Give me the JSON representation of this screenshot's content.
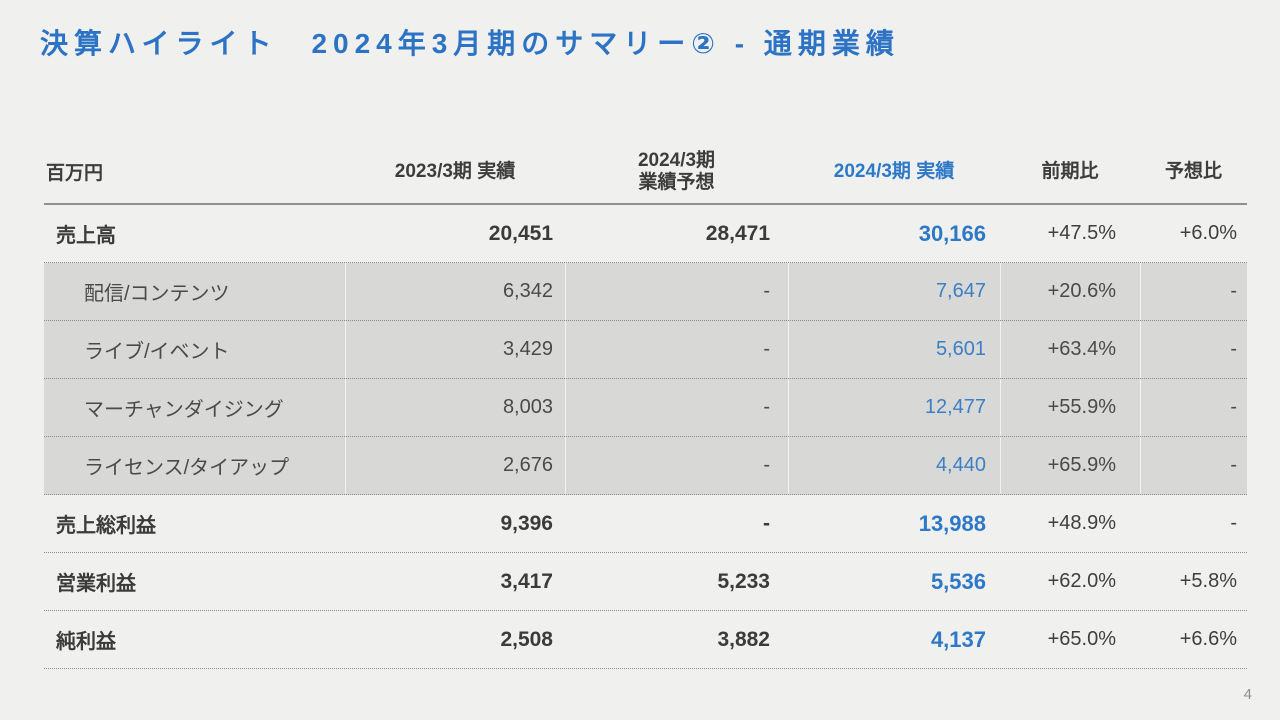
{
  "page": {
    "title": "決算ハイライト　2024年3月期のサマリー② - 通期業績",
    "page_number": "4"
  },
  "colors": {
    "background": "#f0f0ee",
    "accent_blue": "#2e78c8",
    "sub_row_gray": "#d8d8d6",
    "text_dark": "#3d3d3d",
    "line_gray": "#8b8b8b"
  },
  "table": {
    "unit_label": "百万円",
    "headers": {
      "fy2023": "2023/3期 実績",
      "forecast_line1": "2024/3期",
      "forecast_line2": "業績予想",
      "fy2024": "2024/3期 実績",
      "yoy": "前期比",
      "vs_forecast": "予想比"
    },
    "rows": [
      {
        "type": "main",
        "label": "売上高",
        "fy2023": "20,451",
        "forecast": "28,471",
        "fy2024": "30,166",
        "yoy": "+47.5%",
        "vs_forecast": "+6.0%"
      },
      {
        "type": "sub",
        "label": "配信/コンテンツ",
        "fy2023": "6,342",
        "forecast": "-",
        "fy2024": "7,647",
        "yoy": "+20.6%",
        "vs_forecast": "-"
      },
      {
        "type": "sub",
        "label": "ライブ/イベント",
        "fy2023": "3,429",
        "forecast": "-",
        "fy2024": "5,601",
        "yoy": "+63.4%",
        "vs_forecast": "-"
      },
      {
        "type": "sub",
        "label": "マーチャンダイジング",
        "fy2023": "8,003",
        "forecast": "-",
        "fy2024": "12,477",
        "yoy": "+55.9%",
        "vs_forecast": "-"
      },
      {
        "type": "sub",
        "label": "ライセンス/タイアップ",
        "fy2023": "2,676",
        "forecast": "-",
        "fy2024": "4,440",
        "yoy": "+65.9%",
        "vs_forecast": "-"
      },
      {
        "type": "main",
        "label": "売上総利益",
        "fy2023": "9,396",
        "forecast": "-",
        "fy2024": "13,988",
        "yoy": "+48.9%",
        "vs_forecast": "-"
      },
      {
        "type": "main",
        "label": "営業利益",
        "fy2023": "3,417",
        "forecast": "5,233",
        "fy2024": "5,536",
        "yoy": "+62.0%",
        "vs_forecast": "+5.8%"
      },
      {
        "type": "main",
        "label": "純利益",
        "fy2023": "2,508",
        "forecast": "3,882",
        "fy2024": "4,137",
        "yoy": "+65.0%",
        "vs_forecast": "+6.6%"
      }
    ]
  }
}
